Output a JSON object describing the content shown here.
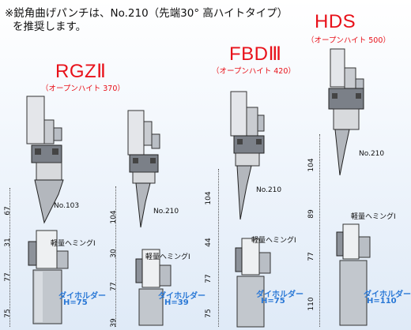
{
  "note": {
    "line1": "※鋭角曲げパンチは、No.210（先端30°  高ハイトタイプ）",
    "line2": "を推奨します。"
  },
  "columns": [
    {
      "id": "rgz2",
      "title": "RGZⅡ",
      "subtitle": "（オープンハイト  370）",
      "punch_label": "No.103",
      "hemming_label": "軽量ヘミングⅠ",
      "dieholder_label": "ダイホルダー",
      "dieholder_value": "H=75",
      "dims": [
        "67",
        "31",
        "77",
        "75"
      ]
    },
    {
      "id": "rgz2-210",
      "title": "",
      "subtitle": "",
      "punch_label": "No.210",
      "hemming_label": "軽量ヘミングⅠ",
      "dieholder_label": "ダイホルダー",
      "dieholder_value": "H=39",
      "dims": [
        "104",
        "30",
        "77",
        "39"
      ]
    },
    {
      "id": "fbd3",
      "title": "FBDⅢ",
      "subtitle": "（オープンハイト  420）",
      "punch_label": "No.210",
      "hemming_label": "軽量ヘミングⅠ",
      "dieholder_label": "ダイホルダー",
      "dieholder_value": "H=75",
      "dims": [
        "104",
        "44",
        "77",
        "75"
      ]
    },
    {
      "id": "hds",
      "title": "HDS",
      "subtitle": "（オープンハイト  500）",
      "punch_label": "No.210",
      "hemming_label": "軽量ヘミングⅠ",
      "dieholder_label": "ダイホルダー",
      "dieholder_value": "H=110",
      "dims": [
        "104",
        "89",
        "77",
        "110"
      ]
    }
  ],
  "colors": {
    "title": "#e8111a",
    "dieholder": "#2a78d6",
    "metal": "#9aa0a8",
    "background": "#dfeaf7"
  }
}
